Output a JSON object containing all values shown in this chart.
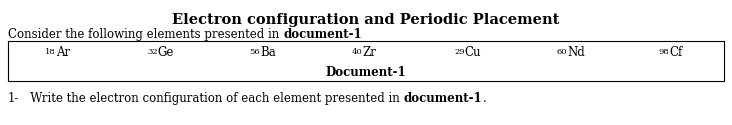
{
  "title": "Electron configuration and Periodic Placement",
  "consider_normal": "Consider the following elements presented in ",
  "consider_bold": "document-1",
  "elements": [
    {
      "number": "18",
      "symbol": "Ar"
    },
    {
      "number": "32",
      "symbol": "Ge"
    },
    {
      "number": "56",
      "symbol": "Ba"
    },
    {
      "number": "40",
      "symbol": "Zr"
    },
    {
      "number": "29",
      "symbol": "Cu"
    },
    {
      "number": "60",
      "symbol": "Nd"
    },
    {
      "number": "98",
      "symbol": "Cf"
    }
  ],
  "table_label": "Document-1",
  "q_num": "1-",
  "q_normal": "   Write the electron configuration of each element presented in ",
  "q_bold": "document-1",
  "q_end": ".",
  "bg_color": "#ffffff",
  "text_color": "#000000",
  "title_fontsize": 10.5,
  "body_fontsize": 8.5,
  "small_fontsize": 6.0,
  "elem_fontsize": 8.5
}
